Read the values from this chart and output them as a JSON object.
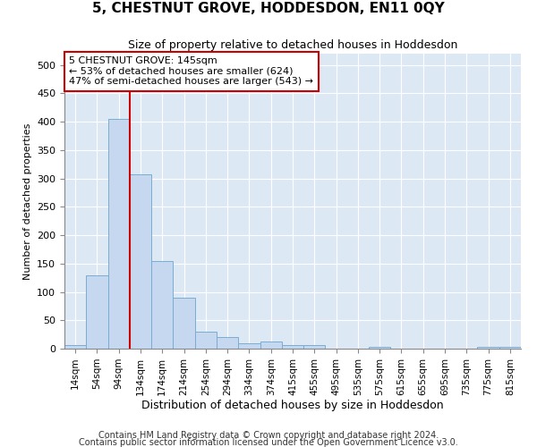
{
  "title": "5, CHESTNUT GROVE, HODDESDON, EN11 0QY",
  "subtitle": "Size of property relative to detached houses in Hoddesdon",
  "xlabel": "Distribution of detached houses by size in Hoddesdon",
  "ylabel": "Number of detached properties",
  "footer1": "Contains HM Land Registry data © Crown copyright and database right 2024.",
  "footer2": "Contains public sector information licensed under the Open Government Licence v3.0.",
  "bin_labels": [
    "14sqm",
    "54sqm",
    "94sqm",
    "134sqm",
    "174sqm",
    "214sqm",
    "254sqm",
    "294sqm",
    "334sqm",
    "374sqm",
    "415sqm",
    "455sqm",
    "495sqm",
    "535sqm",
    "575sqm",
    "615sqm",
    "655sqm",
    "695sqm",
    "735sqm",
    "775sqm",
    "815sqm"
  ],
  "bar_heights": [
    6,
    130,
    405,
    308,
    155,
    90,
    30,
    20,
    10,
    12,
    6,
    6,
    0,
    0,
    3,
    0,
    0,
    0,
    0,
    3,
    3
  ],
  "bar_color": "#c5d8ef",
  "bar_edge_color": "#7aadd4",
  "background_color": "#dde8f5",
  "grid_color": "#ffffff",
  "vline_color": "#cc0000",
  "vline_x_index": 2.5,
  "annotation_line1": "5 CHESTNUT GROVE: 145sqm",
  "annotation_line2": "← 53% of detached houses are smaller (624)",
  "annotation_line3": "47% of semi-detached houses are larger (543) →",
  "annotation_box_color": "#ffffff",
  "annotation_box_edge": "#cc0000",
  "ylim": [
    0,
    520
  ],
  "yticks": [
    0,
    50,
    100,
    150,
    200,
    250,
    300,
    350,
    400,
    450,
    500
  ],
  "title_fontsize": 11,
  "subtitle_fontsize": 9,
  "ylabel_fontsize": 8,
  "xlabel_fontsize": 9,
  "tick_fontsize": 8,
  "xtick_fontsize": 7.5,
  "annotation_fontsize": 8,
  "footer_fontsize": 7
}
